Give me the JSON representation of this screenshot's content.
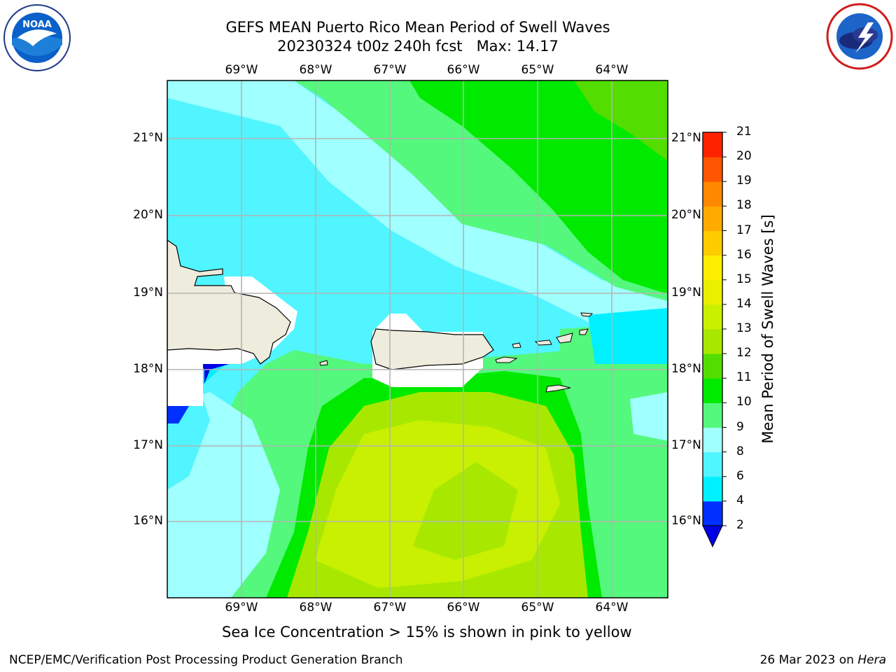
{
  "header": {
    "title_line1": "GEFS MEAN Puerto Rico Mean Period of Swell Waves",
    "title_line2": "20230324 t00z 240h fcst   Max: 14.17"
  },
  "logos": {
    "noaa": {
      "text": "NOAA",
      "icon": "noaa-logo-icon"
    },
    "nws": {
      "icon": "nws-logo-icon"
    }
  },
  "map": {
    "lon_labels": [
      "69°W",
      "68°W",
      "67°W",
      "66°W",
      "65°W",
      "64°W"
    ],
    "lat_labels": [
      "21°N",
      "20°N",
      "19°N",
      "18°N",
      "17°N",
      "16°N"
    ],
    "land_color": "#eeecdc",
    "grid_color": "#b4b4b4"
  },
  "colorbar": {
    "label": "Mean Period of Swell Waves [s]",
    "levels": [
      "2",
      "4",
      "6",
      "8",
      "9",
      "10",
      "11",
      "12",
      "13",
      "14",
      "15",
      "16",
      "17",
      "18",
      "19",
      "20",
      "21"
    ],
    "colors": [
      "#0030ff",
      "#00f0ff",
      "#50f5ff",
      "#a0ffff",
      "#54f87c",
      "#00ea00",
      "#54dd00",
      "#a8e800",
      "#c8f000",
      "#e8f000",
      "#ffee00",
      "#ffcc00",
      "#ffaa00",
      "#ff8800",
      "#ff5500",
      "#ff2200"
    ],
    "extend_color": "#0000e6"
  },
  "chart_data": {
    "type": "heatmap",
    "title": "GEFS MEAN Puerto Rico Mean Period of Swell Waves",
    "subtitle": "20230324 t00z 240h fcst   Max: 14.17",
    "max": 14.17,
    "colorbar_label": "Mean Period of Swell Waves [s]",
    "colorbar_levels": [
      2,
      4,
      6,
      8,
      9,
      10,
      11,
      12,
      13,
      14,
      15,
      16,
      17,
      18,
      19,
      20,
      21
    ],
    "lon_range": [
      -69.3,
      -62.5
    ],
    "lat_range": [
      15.0,
      21.7
    ],
    "grid": true
  },
  "footer": {
    "sea_ice_note": "Sea Ice Concentration > 15% is shown in pink to yellow",
    "credit": "NCEP/EMC/Verification Post Processing Product Generation Branch",
    "date": "26 Mar 2023 on ",
    "machine": "Hera"
  }
}
